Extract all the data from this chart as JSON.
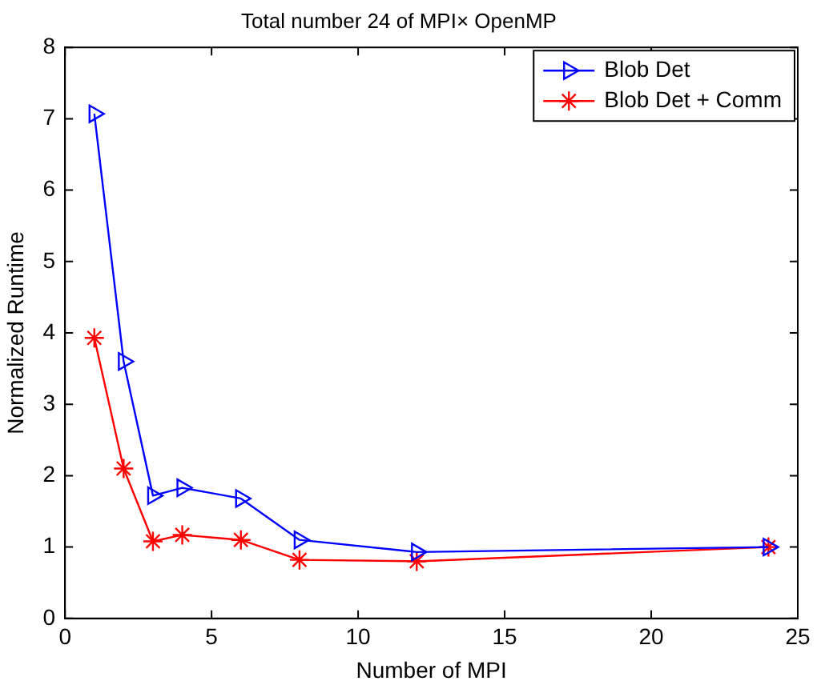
{
  "chart_data": {
    "type": "line",
    "title": "Total number 24 of MPI× OpenMP",
    "xlabel": "Number of MPI",
    "ylabel": "Normalized Runtime",
    "x": [
      1,
      2,
      3,
      4,
      6,
      8,
      12,
      24
    ],
    "series": [
      {
        "name": "Blob Det",
        "color": "#0000ff",
        "marker": "triangle",
        "values": [
          7.07,
          3.6,
          1.72,
          1.83,
          1.68,
          1.1,
          0.93,
          1.0
        ]
      },
      {
        "name": "Blob Det + Comm",
        "color": "#ff0000",
        "marker": "cross",
        "values": [
          3.93,
          2.1,
          1.08,
          1.17,
          1.1,
          0.82,
          0.8,
          1.0
        ]
      }
    ],
    "xlim": [
      0,
      25
    ],
    "xticks": [
      0,
      5,
      10,
      15,
      20,
      25
    ],
    "ylim": [
      0,
      8
    ],
    "yticks": [
      0,
      1,
      2,
      3,
      4,
      5,
      6,
      7,
      8
    ],
    "grid": false,
    "legend": "top right",
    "line_style": "solid"
  }
}
